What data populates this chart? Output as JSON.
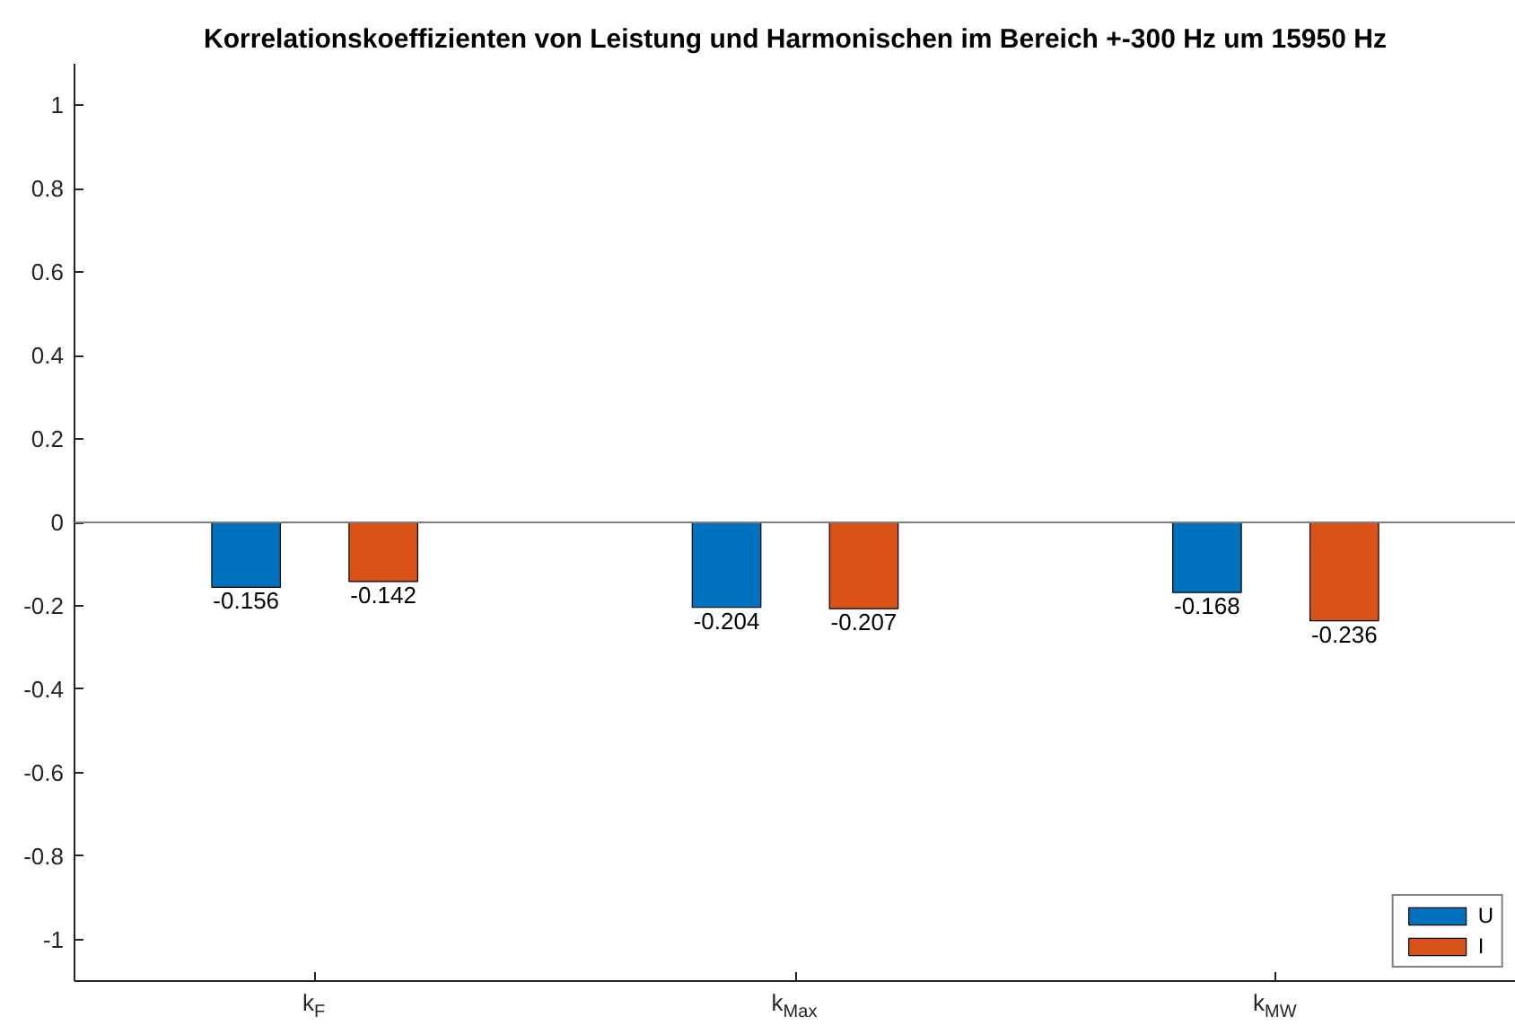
{
  "chart_data": {
    "type": "bar",
    "title": "Korrelationskoeffizienten von Leistung und Harmonischen im Bereich +-300 Hz um 15950 Hz",
    "categories": [
      "k$_{F}$",
      "k$_{Max}$",
      "k$_{MW}$"
    ],
    "series": [
      {
        "name": "U",
        "color": "#0072bd",
        "values": [
          -0.156,
          -0.204,
          -0.168
        ]
      },
      {
        "name": "I",
        "color": "#d95319",
        "values": [
          -0.142,
          -0.207,
          -0.236
        ]
      }
    ],
    "ylim": [
      -1.1,
      1.1
    ],
    "yticks": [
      -1,
      -0.8,
      -0.6,
      -0.4,
      -0.2,
      0,
      0.2,
      0.4,
      0.6,
      0.8,
      1
    ],
    "data_labels": true,
    "legend": "bottom right"
  }
}
